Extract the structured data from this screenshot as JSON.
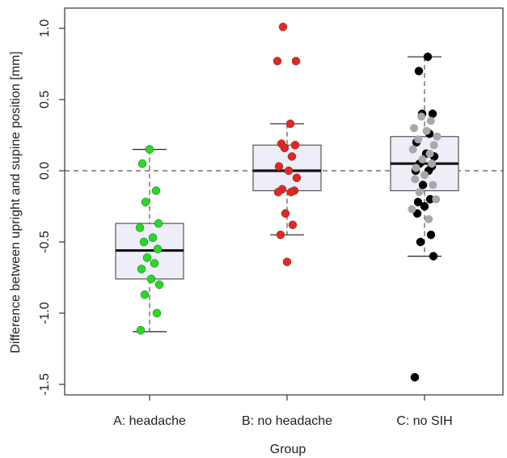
{
  "chart_data": {
    "type": "box",
    "title": "",
    "xlabel": "Group",
    "ylabel": "Difference between upright and supine position [mm]",
    "ylim": [
      -1.55,
      1.1
    ],
    "yticks": [
      1.0,
      0.5,
      0.0,
      -0.5,
      -1.0,
      -1.5
    ],
    "ytick_labels": [
      "1.0",
      "0.5",
      "0.0",
      "-0.5",
      "-1.0",
      "-1.5"
    ],
    "reference_line": 0.0,
    "categories": [
      "A: headache",
      "B: no headache",
      "C: no SIH"
    ],
    "boxes": [
      {
        "name": "A: headache",
        "whisker_low": -1.13,
        "q1": -0.76,
        "median": -0.56,
        "q3": -0.37,
        "whisker_high": 0.15
      },
      {
        "name": "B: no headache",
        "whisker_low": -0.45,
        "q1": -0.14,
        "median": 0.0,
        "q3": 0.18,
        "whisker_high": 0.33
      },
      {
        "name": "C: no SIH",
        "whisker_low": -0.6,
        "q1": -0.14,
        "median": 0.05,
        "q3": 0.24,
        "whisker_high": 0.8
      }
    ],
    "series": [
      {
        "group": "A: headache",
        "color": "#22dd22",
        "values": [
          0.15,
          0.05,
          -0.14,
          -0.22,
          -0.37,
          -0.4,
          -0.47,
          -0.5,
          -0.55,
          -0.61,
          -0.65,
          -0.69,
          -0.76,
          -0.8,
          -0.87,
          -1.0,
          -1.12
        ]
      },
      {
        "group": "B: no headache",
        "color": "#e8261c",
        "values": [
          1.01,
          0.77,
          0.77,
          0.33,
          0.19,
          0.18,
          0.16,
          0.1,
          0.03,
          0.0,
          -0.05,
          -0.13,
          -0.14,
          -0.15,
          -0.15,
          -0.3,
          -0.38,
          -0.45,
          -0.64
        ]
      },
      {
        "group": "C: no SIH",
        "color": "#000000",
        "values": [
          0.8,
          0.7,
          0.4,
          0.4,
          0.26,
          0.2,
          0.12,
          0.1,
          0.05,
          0.03,
          0.0,
          0.0,
          -0.1,
          -0.2,
          -0.22,
          -0.25,
          -0.3,
          -0.45,
          -0.5,
          -0.6,
          -1.45
        ]
      },
      {
        "group": "C: no SIH",
        "color": "#a8a8a8",
        "values": [
          0.38,
          0.35,
          0.3,
          0.28,
          0.24,
          0.22,
          0.18,
          0.15,
          0.12,
          0.08,
          0.05,
          0.02,
          -0.03,
          -0.06,
          -0.1,
          -0.15,
          -0.2,
          -0.27,
          -0.34
        ]
      }
    ]
  }
}
